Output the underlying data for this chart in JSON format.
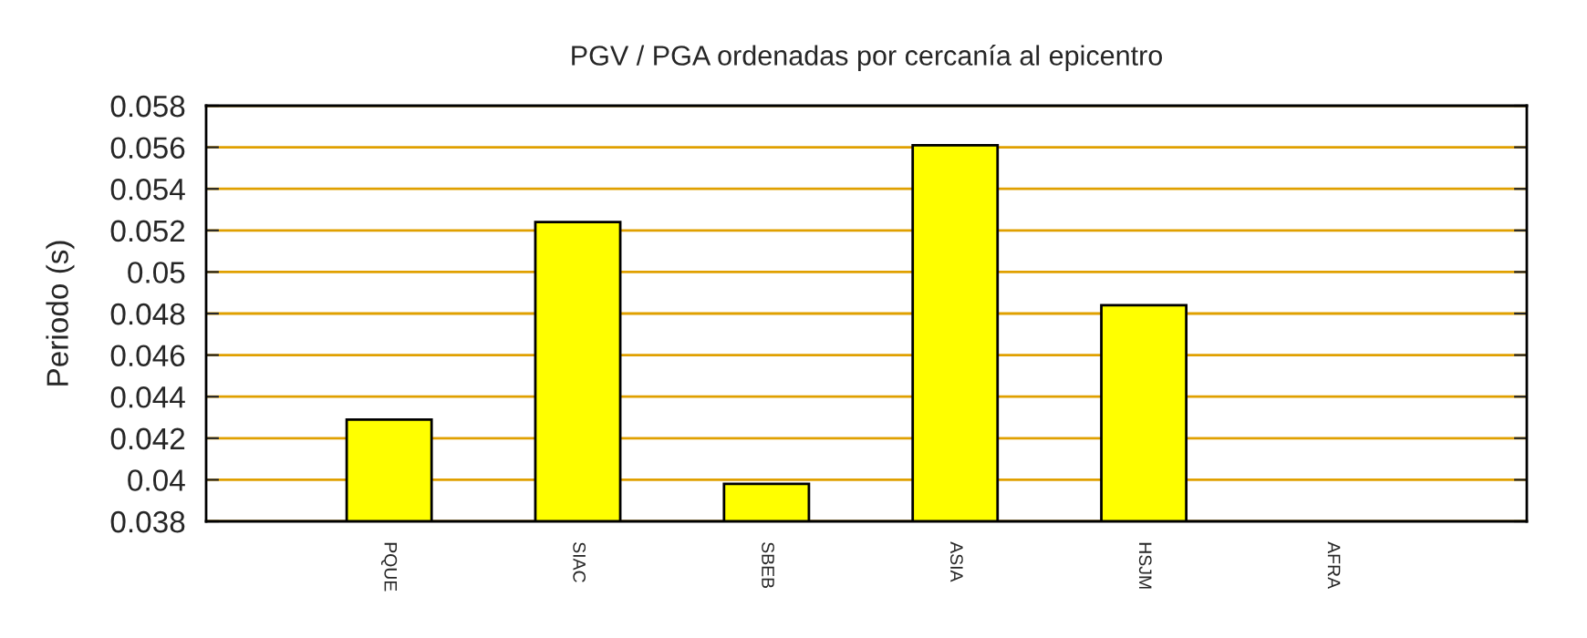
{
  "chart_data": {
    "type": "bar",
    "title": "PGV / PGA ordenadas por cercanía al epicentro",
    "ylabel": "Periodo (s)",
    "categories": [
      "PQUE",
      "SIAC",
      "SBEB",
      "ASIA",
      "HSJM",
      "AFRA"
    ],
    "values": [
      0.0429,
      0.0524,
      0.0398,
      0.0561,
      0.0484,
      null
    ],
    "color": "#ffff00",
    "ylim": [
      0.038,
      0.058
    ],
    "yticks": [
      0.038,
      0.04,
      0.042,
      0.044,
      0.046,
      0.048,
      0.05,
      0.052,
      0.054,
      0.056,
      0.058
    ],
    "grid": "y",
    "legend": false
  }
}
